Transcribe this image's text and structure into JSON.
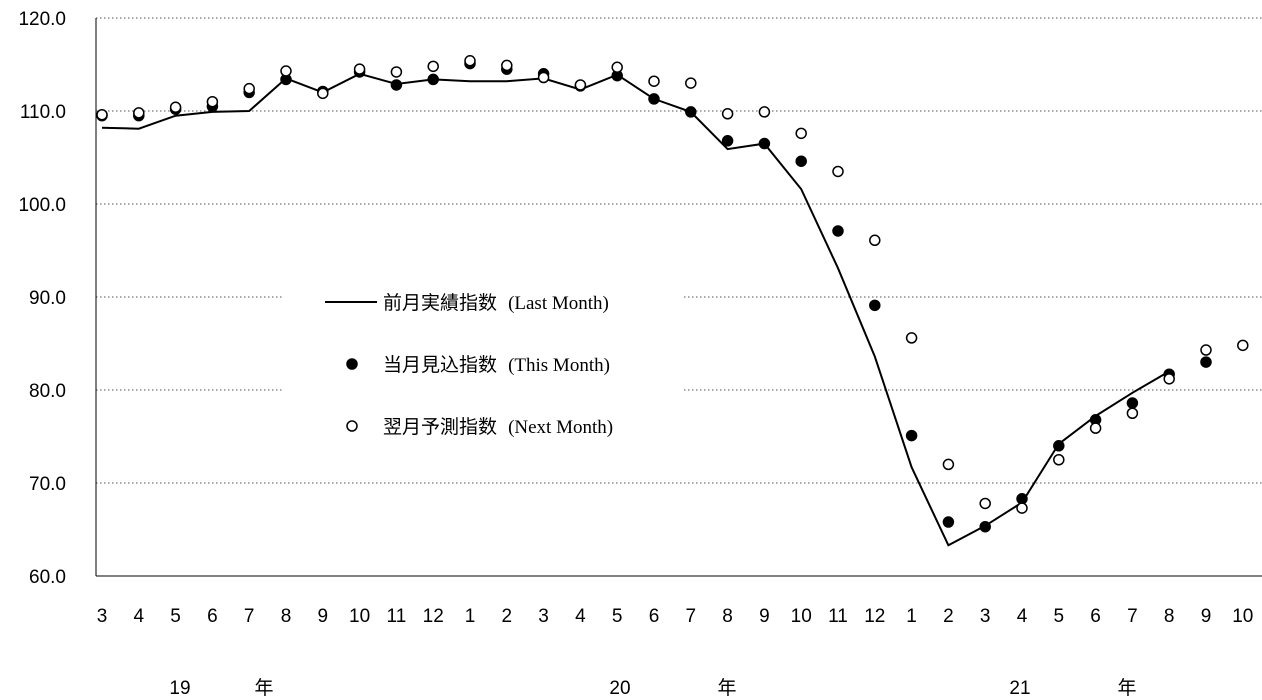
{
  "chart_data": {
    "type": "line",
    "categories": [
      "3",
      "4",
      "5",
      "6",
      "7",
      "8",
      "9",
      "10",
      "11",
      "12",
      "1",
      "2",
      "3",
      "4",
      "5",
      "6",
      "7",
      "8",
      "9",
      "10",
      "11",
      "12",
      "1",
      "2",
      "3",
      "4",
      "5",
      "6",
      "7",
      "8",
      "9",
      "10"
    ],
    "year_labels": [
      {
        "year": "19",
        "unit": "年"
      },
      {
        "year": "20",
        "unit": "年"
      },
      {
        "year": "21",
        "unit": "年"
      }
    ],
    "ylim": [
      60,
      120
    ],
    "yticks": [
      "60.0",
      "70.0",
      "80.0",
      "90.0",
      "100.0",
      "110.0",
      "120.0"
    ],
    "grid": "horizontal dotted",
    "legend_position": "center-left",
    "series": [
      {
        "name": "前月実績指数",
        "name_en": "(Last Month)",
        "marker": "line",
        "color": "#000000",
        "values": [
          108.2,
          108.1,
          109.5,
          109.9,
          110.0,
          113.5,
          112.0,
          114.0,
          112.9,
          113.4,
          113.2,
          113.2,
          113.5,
          112.3,
          113.9,
          111.3,
          109.9,
          105.9,
          106.5,
          101.6,
          93.1,
          83.6,
          71.7,
          63.3,
          65.4,
          67.9,
          74.2,
          77.2,
          79.7,
          82.0,
          null,
          null
        ]
      },
      {
        "name": "当月見込指数",
        "name_en": "(This Month)",
        "marker": "filled-circle",
        "color": "#000000",
        "values": [
          109.5,
          109.5,
          110.2,
          110.5,
          112.0,
          113.4,
          112.1,
          114.2,
          112.8,
          113.4,
          115.1,
          114.5,
          114.0,
          112.7,
          113.8,
          111.3,
          109.9,
          106.8,
          106.5,
          104.6,
          97.1,
          89.1,
          75.1,
          65.8,
          65.3,
          68.3,
          74.0,
          76.8,
          78.6,
          81.7,
          83.0,
          null
        ]
      },
      {
        "name": "翌月予測指数",
        "name_en": "(Next Month)",
        "marker": "open-circle",
        "color": "#000000",
        "values": [
          109.6,
          109.8,
          110.4,
          111.0,
          112.4,
          114.3,
          111.9,
          114.5,
          114.2,
          114.8,
          115.4,
          114.9,
          113.6,
          112.8,
          114.7,
          113.2,
          113.0,
          109.7,
          109.9,
          107.6,
          103.5,
          96.1,
          85.6,
          72.0,
          67.8,
          67.3,
          72.5,
          75.9,
          77.5,
          81.2,
          84.3,
          84.8
        ]
      }
    ]
  }
}
